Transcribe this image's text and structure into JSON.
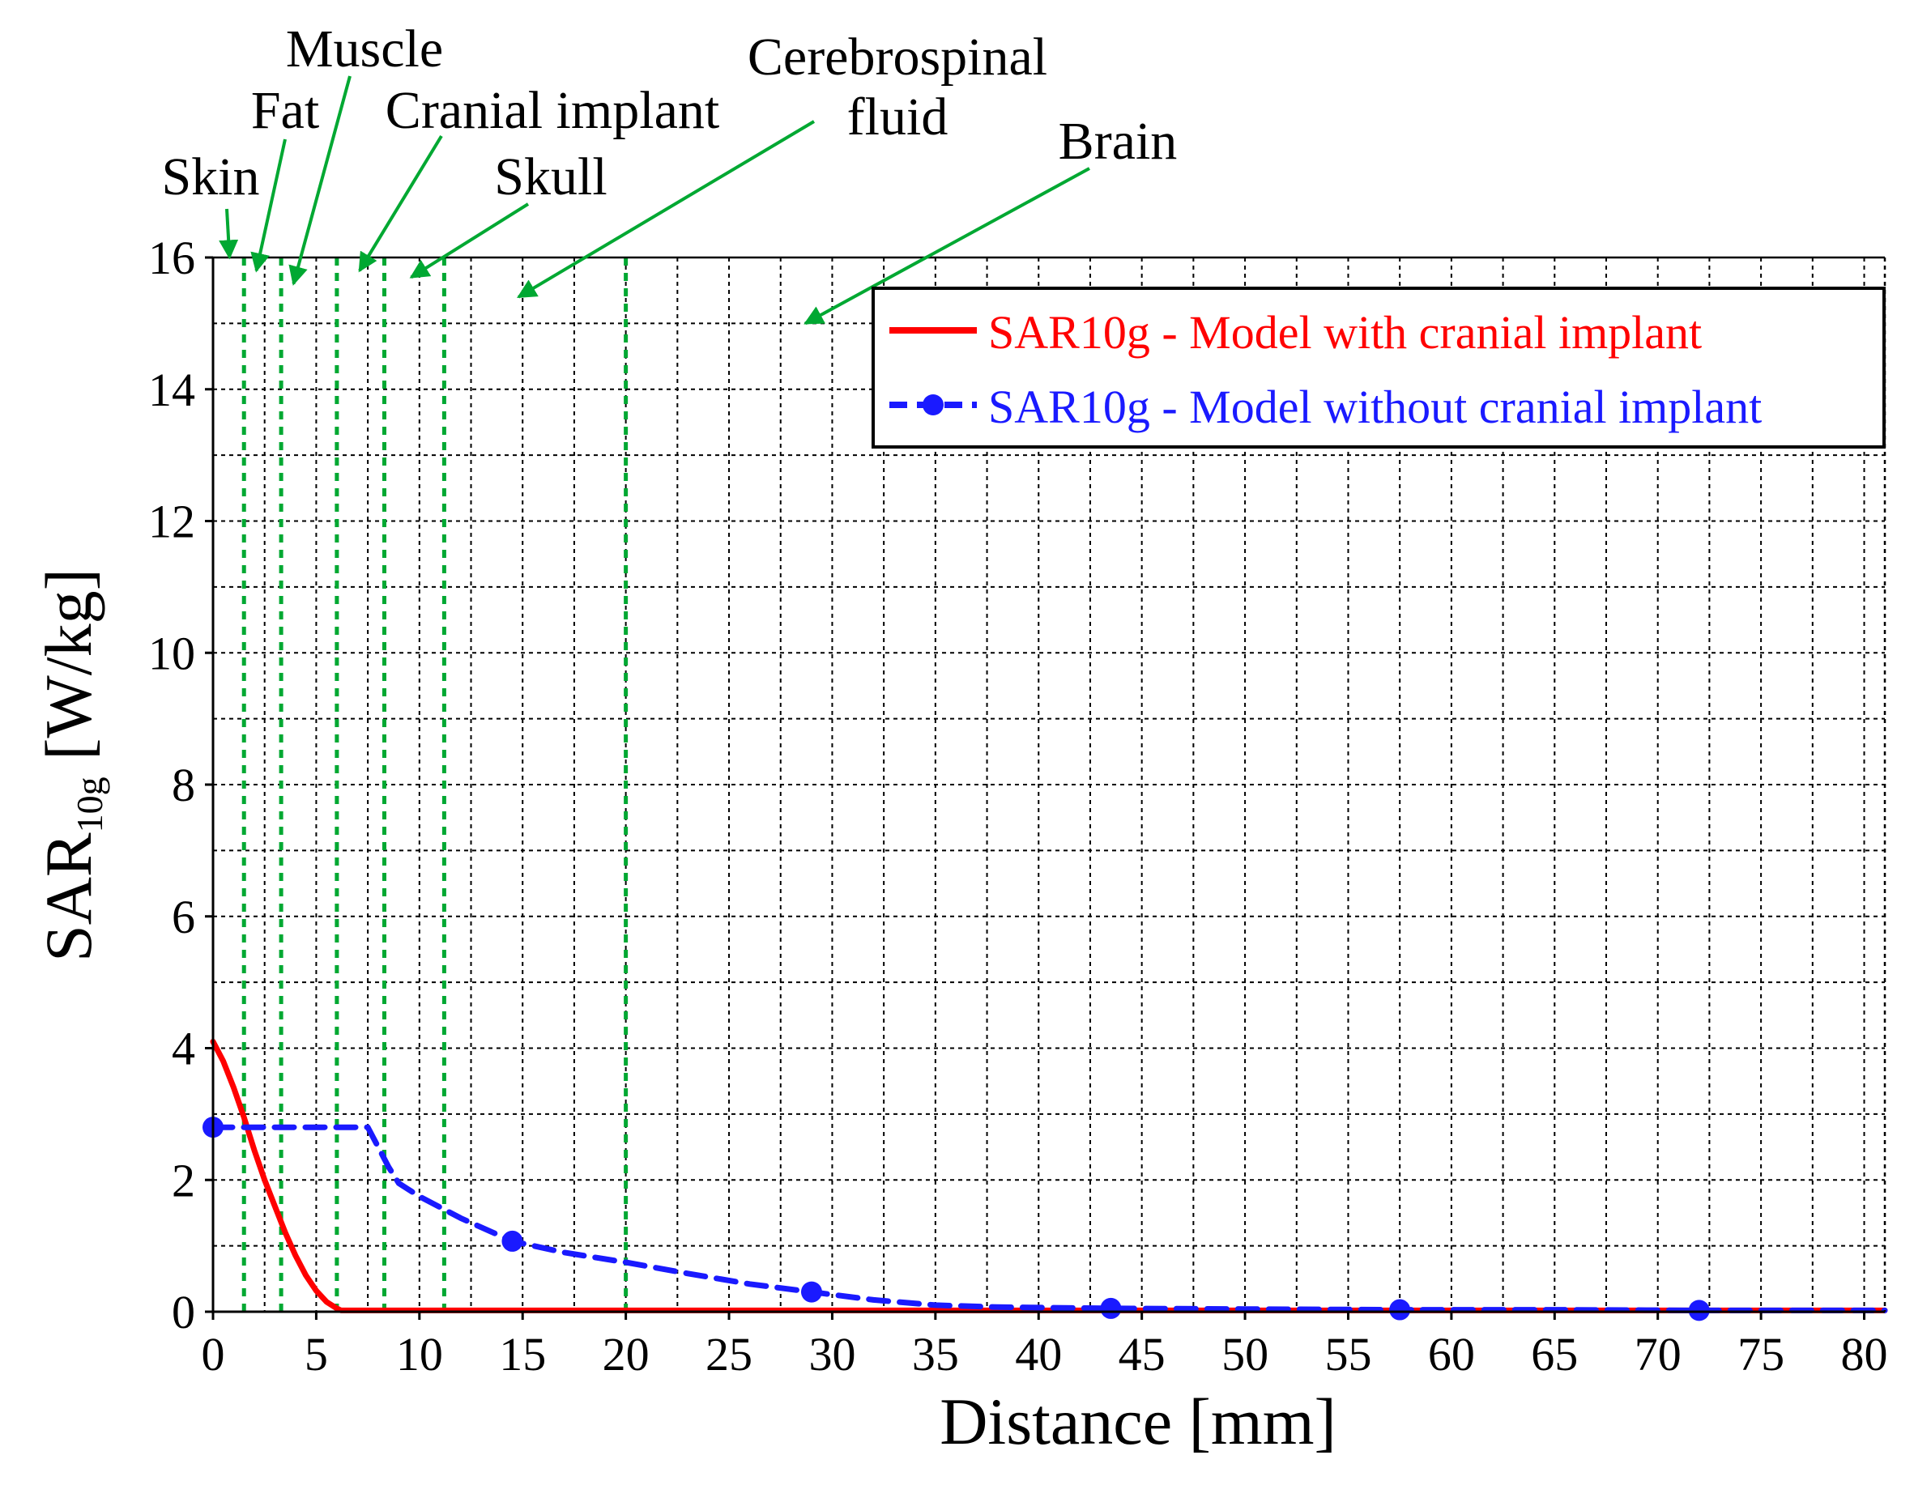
{
  "chart_data": {
    "type": "line",
    "xlabel": "Distance [mm]",
    "ylabel_main": "SAR",
    "ylabel_sub": "10g",
    "ylabel_unit": " [W/kg]",
    "xlim": [
      0,
      81
    ],
    "ylim": [
      0,
      16
    ],
    "xticks": [
      0,
      5,
      10,
      15,
      20,
      25,
      30,
      35,
      40,
      45,
      50,
      55,
      60,
      65,
      70,
      75,
      80
    ],
    "yticks": [
      0,
      2,
      4,
      6,
      8,
      10,
      12,
      14,
      16
    ],
    "xgrid_step": 2.5,
    "ygrid_step": 1,
    "grid": true,
    "legend_position": "top-right",
    "colors": {
      "with_implant": "#ff0000",
      "without_implant": "#1a1aff",
      "tissue_boundary": "#00a832",
      "annotation_arrow": "#00a832",
      "grid": "#000000"
    },
    "series": [
      {
        "name": "SAR10g - Model with cranial implant",
        "key": "with_implant",
        "style": "solid",
        "x": [
          0,
          0.5,
          1,
          1.5,
          2,
          2.5,
          3,
          3.5,
          4,
          4.5,
          5,
          5.5,
          6,
          6.2,
          10,
          20,
          30,
          40,
          50,
          60,
          70,
          81
        ],
        "y": [
          4.1,
          3.8,
          3.4,
          2.95,
          2.45,
          2.0,
          1.6,
          1.2,
          0.85,
          0.55,
          0.32,
          0.15,
          0.05,
          0.02,
          0.02,
          0.02,
          0.02,
          0.02,
          0.02,
          0.02,
          0.02,
          0.02
        ]
      },
      {
        "name": "SAR10g - Model without cranial implant",
        "key": "without_implant",
        "style": "dashed",
        "x": [
          0,
          2,
          4,
          6,
          7.5,
          8,
          8.5,
          9,
          10,
          12,
          14.5,
          17,
          20,
          23,
          26,
          29,
          32,
          35,
          38,
          43.5,
          50,
          57.5,
          65,
          72,
          81
        ],
        "y": [
          2.8,
          2.8,
          2.8,
          2.8,
          2.8,
          2.5,
          2.2,
          1.95,
          1.75,
          1.42,
          1.07,
          0.9,
          0.75,
          0.58,
          0.42,
          0.3,
          0.18,
          0.1,
          0.07,
          0.05,
          0.04,
          0.03,
          0.03,
          0.02,
          0.02
        ],
        "marker_x": [
          0,
          14.5,
          29,
          43.5,
          57.5,
          72
        ],
        "marker_y": [
          2.8,
          1.07,
          0.3,
          0.05,
          0.03,
          0.02
        ]
      }
    ],
    "tissue_boundaries_mm": [
      1.5,
      3.3,
      6.0,
      8.3,
      11.2,
      20.0
    ],
    "annotations": [
      {
        "label": "Skin",
        "lines": [
          "Skin"
        ],
        "target_x": 0.8,
        "target_y": 16.0
      },
      {
        "label": "Fat",
        "lines": [
          "Fat"
        ],
        "target_x": 2.1,
        "target_y": 15.8
      },
      {
        "label": "Muscle",
        "lines": [
          "Muscle"
        ],
        "target_x": 3.9,
        "target_y": 15.6
      },
      {
        "label": "Cranial implant",
        "lines": [
          "Cranial implant"
        ],
        "target_x": 7.1,
        "target_y": 15.8
      },
      {
        "label": "Skull",
        "lines": [
          "Skull"
        ],
        "target_x": 9.6,
        "target_y": 15.7
      },
      {
        "label": "Cerebrospinal fluid",
        "lines": [
          "Cerebrospinal",
          "fluid"
        ],
        "target_x": 14.8,
        "target_y": 15.4
      },
      {
        "label": "Brain",
        "lines": [
          "Brain"
        ],
        "target_x": 28.7,
        "target_y": 15.0
      }
    ]
  }
}
